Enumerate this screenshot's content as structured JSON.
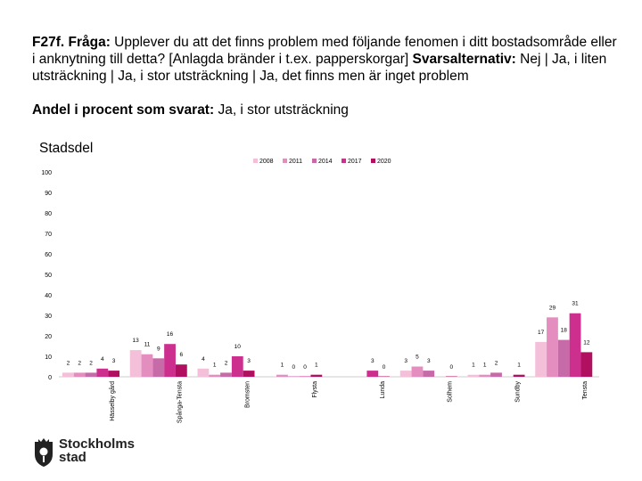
{
  "header": {
    "question_code": "F27f. Fråga:",
    "question_text": "Upplever du att det finns problem med följande fenomen i ditt bostadsområde eller i anknytning till detta? [Anlagda bränder i t.ex. papperskorgar]",
    "answers_label": "Svarsalternativ:",
    "answers_text": "Nej | Ja, i liten utsträckning | Ja, i stor utsträckning | Ja, det finns men är inget problem",
    "share_label": "Andel i procent som svarat:",
    "share_value": "Ja, i stor utsträckning"
  },
  "logo": {
    "line1": "Stockholms",
    "line2": "stad",
    "icon": "stockholm-crest-icon"
  },
  "chart_data": {
    "type": "bar",
    "title": "Stadsdel",
    "xlabel": "",
    "ylabel": "",
    "ylim": [
      0,
      100
    ],
    "yticks": [
      0,
      10,
      20,
      30,
      40,
      50,
      60,
      70,
      80,
      90,
      100
    ],
    "legend_position": "top-right",
    "categories": [
      "Hässelby gård",
      "Spånga-Tensta",
      "Bromsten",
      "Flysta",
      "Lunda",
      "Solhem",
      "Sundby",
      "Tensta"
    ],
    "category_labels": [
      "Hässelby gård",
      "Spånga-Tensta",
      "Bromsten",
      "Flysta",
      "Lunda",
      "Solhem",
      "Sundby",
      "Tensta"
    ],
    "series": [
      {
        "name": "2008",
        "color": "#f4bfd9",
        "values": [
          2,
          13,
          4,
          null,
          null,
          3,
          1,
          17
        ]
      },
      {
        "name": "2011",
        "color": "#e48ec0",
        "values": [
          2,
          11,
          1,
          1,
          null,
          5,
          1,
          29
        ]
      },
      {
        "name": "2014",
        "color": "#c76aa8",
        "values": [
          2,
          9,
          2,
          0,
          null,
          3,
          2,
          18
        ]
      },
      {
        "name": "2017",
        "color": "#cc2f8e",
        "values": [
          4,
          16,
          10,
          0,
          3,
          null,
          null,
          31
        ]
      },
      {
        "name": "2020",
        "color": "#b0105f",
        "values": [
          3,
          6,
          3,
          1,
          0,
          0,
          1,
          12
        ]
      }
    ]
  }
}
